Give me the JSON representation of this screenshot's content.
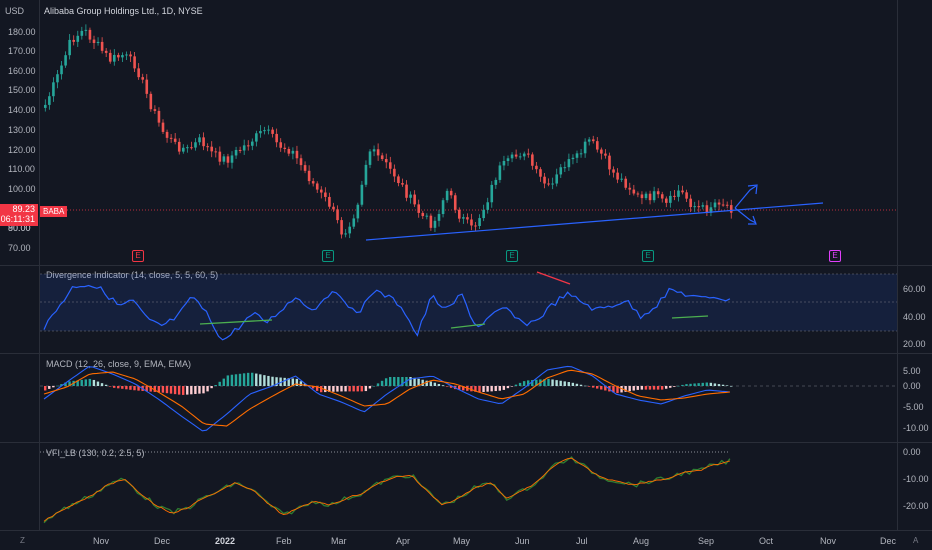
{
  "chart_header": {
    "currency": "USD",
    "title": "Alibaba Group Holdings Ltd., 1D, NYSE"
  },
  "price_panel": {
    "y_ticks": [
      "180.00",
      "170.00",
      "160.00",
      "150.00",
      "140.00",
      "130.00",
      "120.00",
      "110.00",
      "100.00",
      "90.00",
      "80.00",
      "70.00"
    ],
    "current_price": "89.23",
    "countdown": "06:11:31",
    "symbol": "BABA",
    "earnings_markers": [
      {
        "label": "E",
        "color": "#f23645"
      },
      {
        "label": "E",
        "color": "#089981"
      },
      {
        "label": "E",
        "color": "#089981"
      },
      {
        "label": "E",
        "color": "#089981"
      },
      {
        "label": "E",
        "color": "#e040fb"
      }
    ]
  },
  "divergence_panel": {
    "title": "Divergence Indicator (14, close, 5, 5, 60, 5)",
    "y_ticks": [
      "60.00",
      "40.00",
      "20.00"
    ]
  },
  "macd_panel": {
    "title": "MACD (12, 26, close, 9, EMA, EMA)",
    "y_ticks": [
      "5.00",
      "0.00",
      "-5.00",
      "-10.00"
    ]
  },
  "vfi_panel": {
    "title": "VFI_LB (130, 0.2, 2.5, 5)",
    "y_ticks": [
      "0.00",
      "-10.00",
      "-20.00"
    ]
  },
  "x_axis": {
    "labels": [
      "Nov",
      "Dec",
      "2022",
      "Feb",
      "Mar",
      "Apr",
      "May",
      "Jun",
      "Jul",
      "Aug",
      "Sep",
      "Oct",
      "Nov",
      "Dec"
    ]
  },
  "corner": {
    "left": "Z",
    "right": "A"
  },
  "colors": {
    "background": "#131722",
    "up": "#26a69a",
    "down": "#ef5350",
    "trendline": "#2962ff",
    "rsi": "#2962ff",
    "bull_div": "#4caf50",
    "bear_div": "#f23645",
    "macd": "#2962ff",
    "signal": "#ff6d00",
    "vfi": "#2e7d32",
    "vfi_signal": "#ff6d00"
  }
}
